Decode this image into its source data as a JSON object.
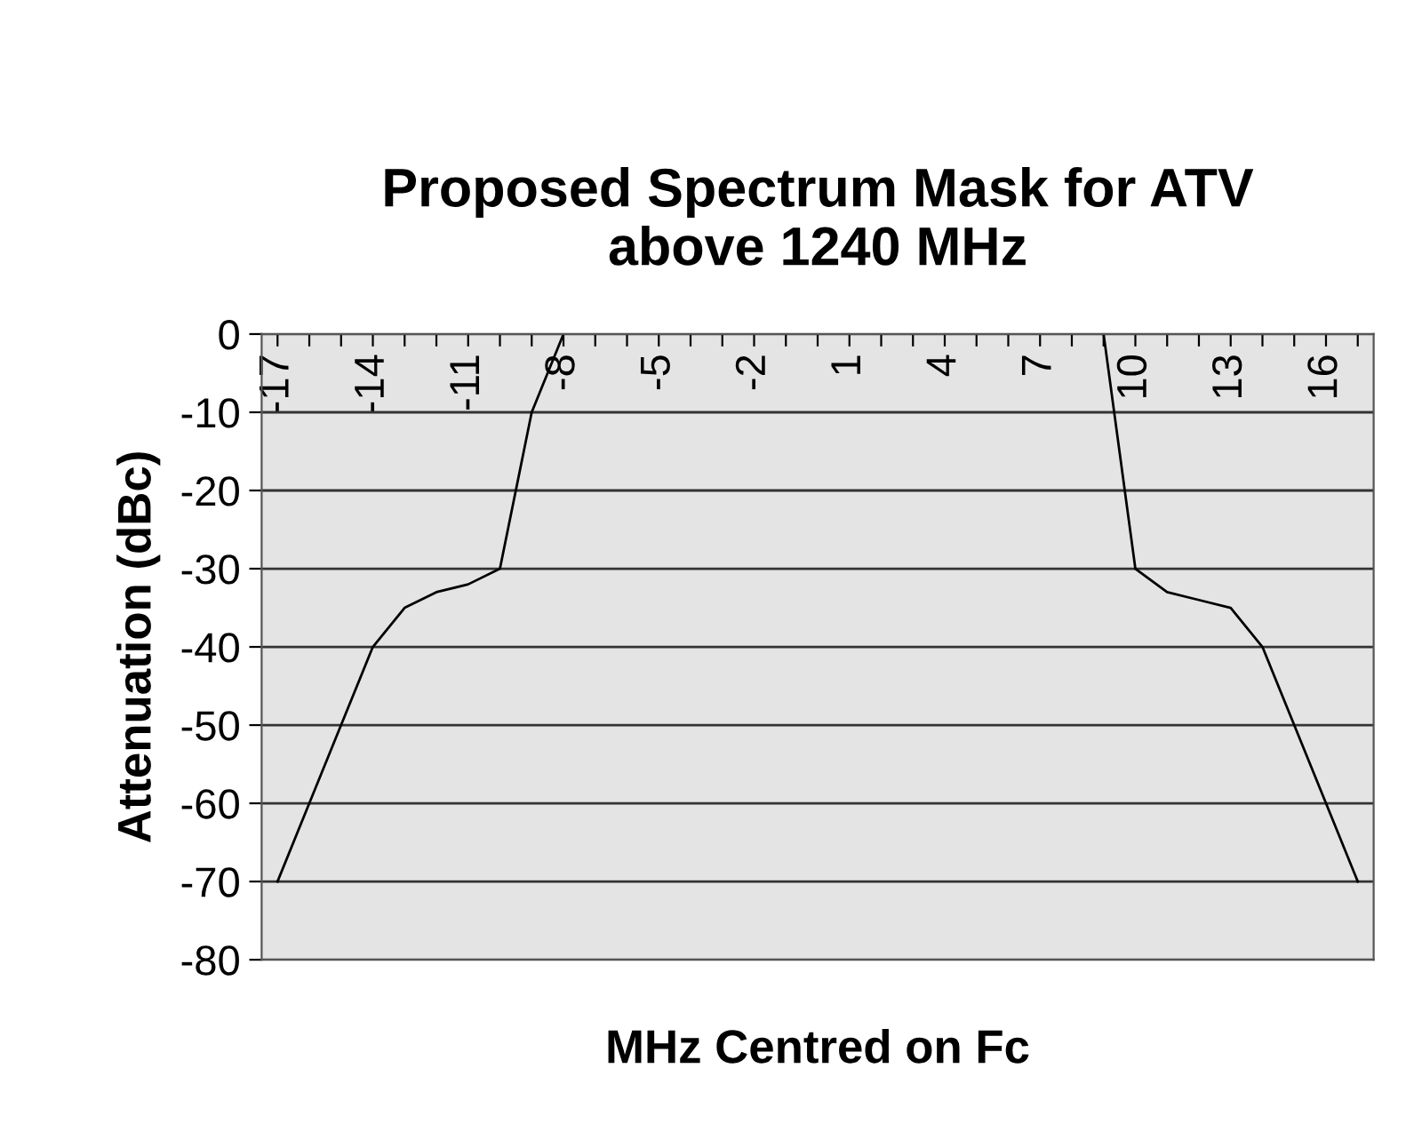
{
  "chart_data": {
    "type": "line",
    "title": "Proposed Spectrum Mask for ATV\nabove 1240 MHz",
    "xlabel": "MHz Centred on Fc",
    "ylabel": "Attenuation (dBc)",
    "categories": [
      "-17",
      null,
      null,
      "-14",
      null,
      null,
      "-11",
      null,
      null,
      "-8",
      null,
      null,
      "-5",
      null,
      null,
      "-2",
      null,
      null,
      "1",
      null,
      null,
      "4",
      null,
      null,
      "7",
      null,
      null,
      "10",
      null,
      null,
      "13",
      null,
      null,
      "16",
      null
    ],
    "series": [
      {
        "color": "#000000",
        "values": [
          -70,
          -60,
          -50,
          -40,
          -35,
          -33,
          -32,
          -30,
          -10,
          0,
          null,
          null,
          null,
          null,
          null,
          null,
          null,
          null,
          null,
          null,
          null,
          null,
          null,
          null,
          null,
          null,
          0,
          -30,
          -33,
          -34,
          -35,
          -40,
          -50,
          -60,
          -70
        ]
      }
    ],
    "ylim": [
      -80,
      0
    ],
    "yticks": [
      -80,
      -70,
      -60,
      -50,
      -40,
      -30,
      -20,
      -10,
      0
    ],
    "grid": "y",
    "marker": "none",
    "line_style": "solid"
  }
}
